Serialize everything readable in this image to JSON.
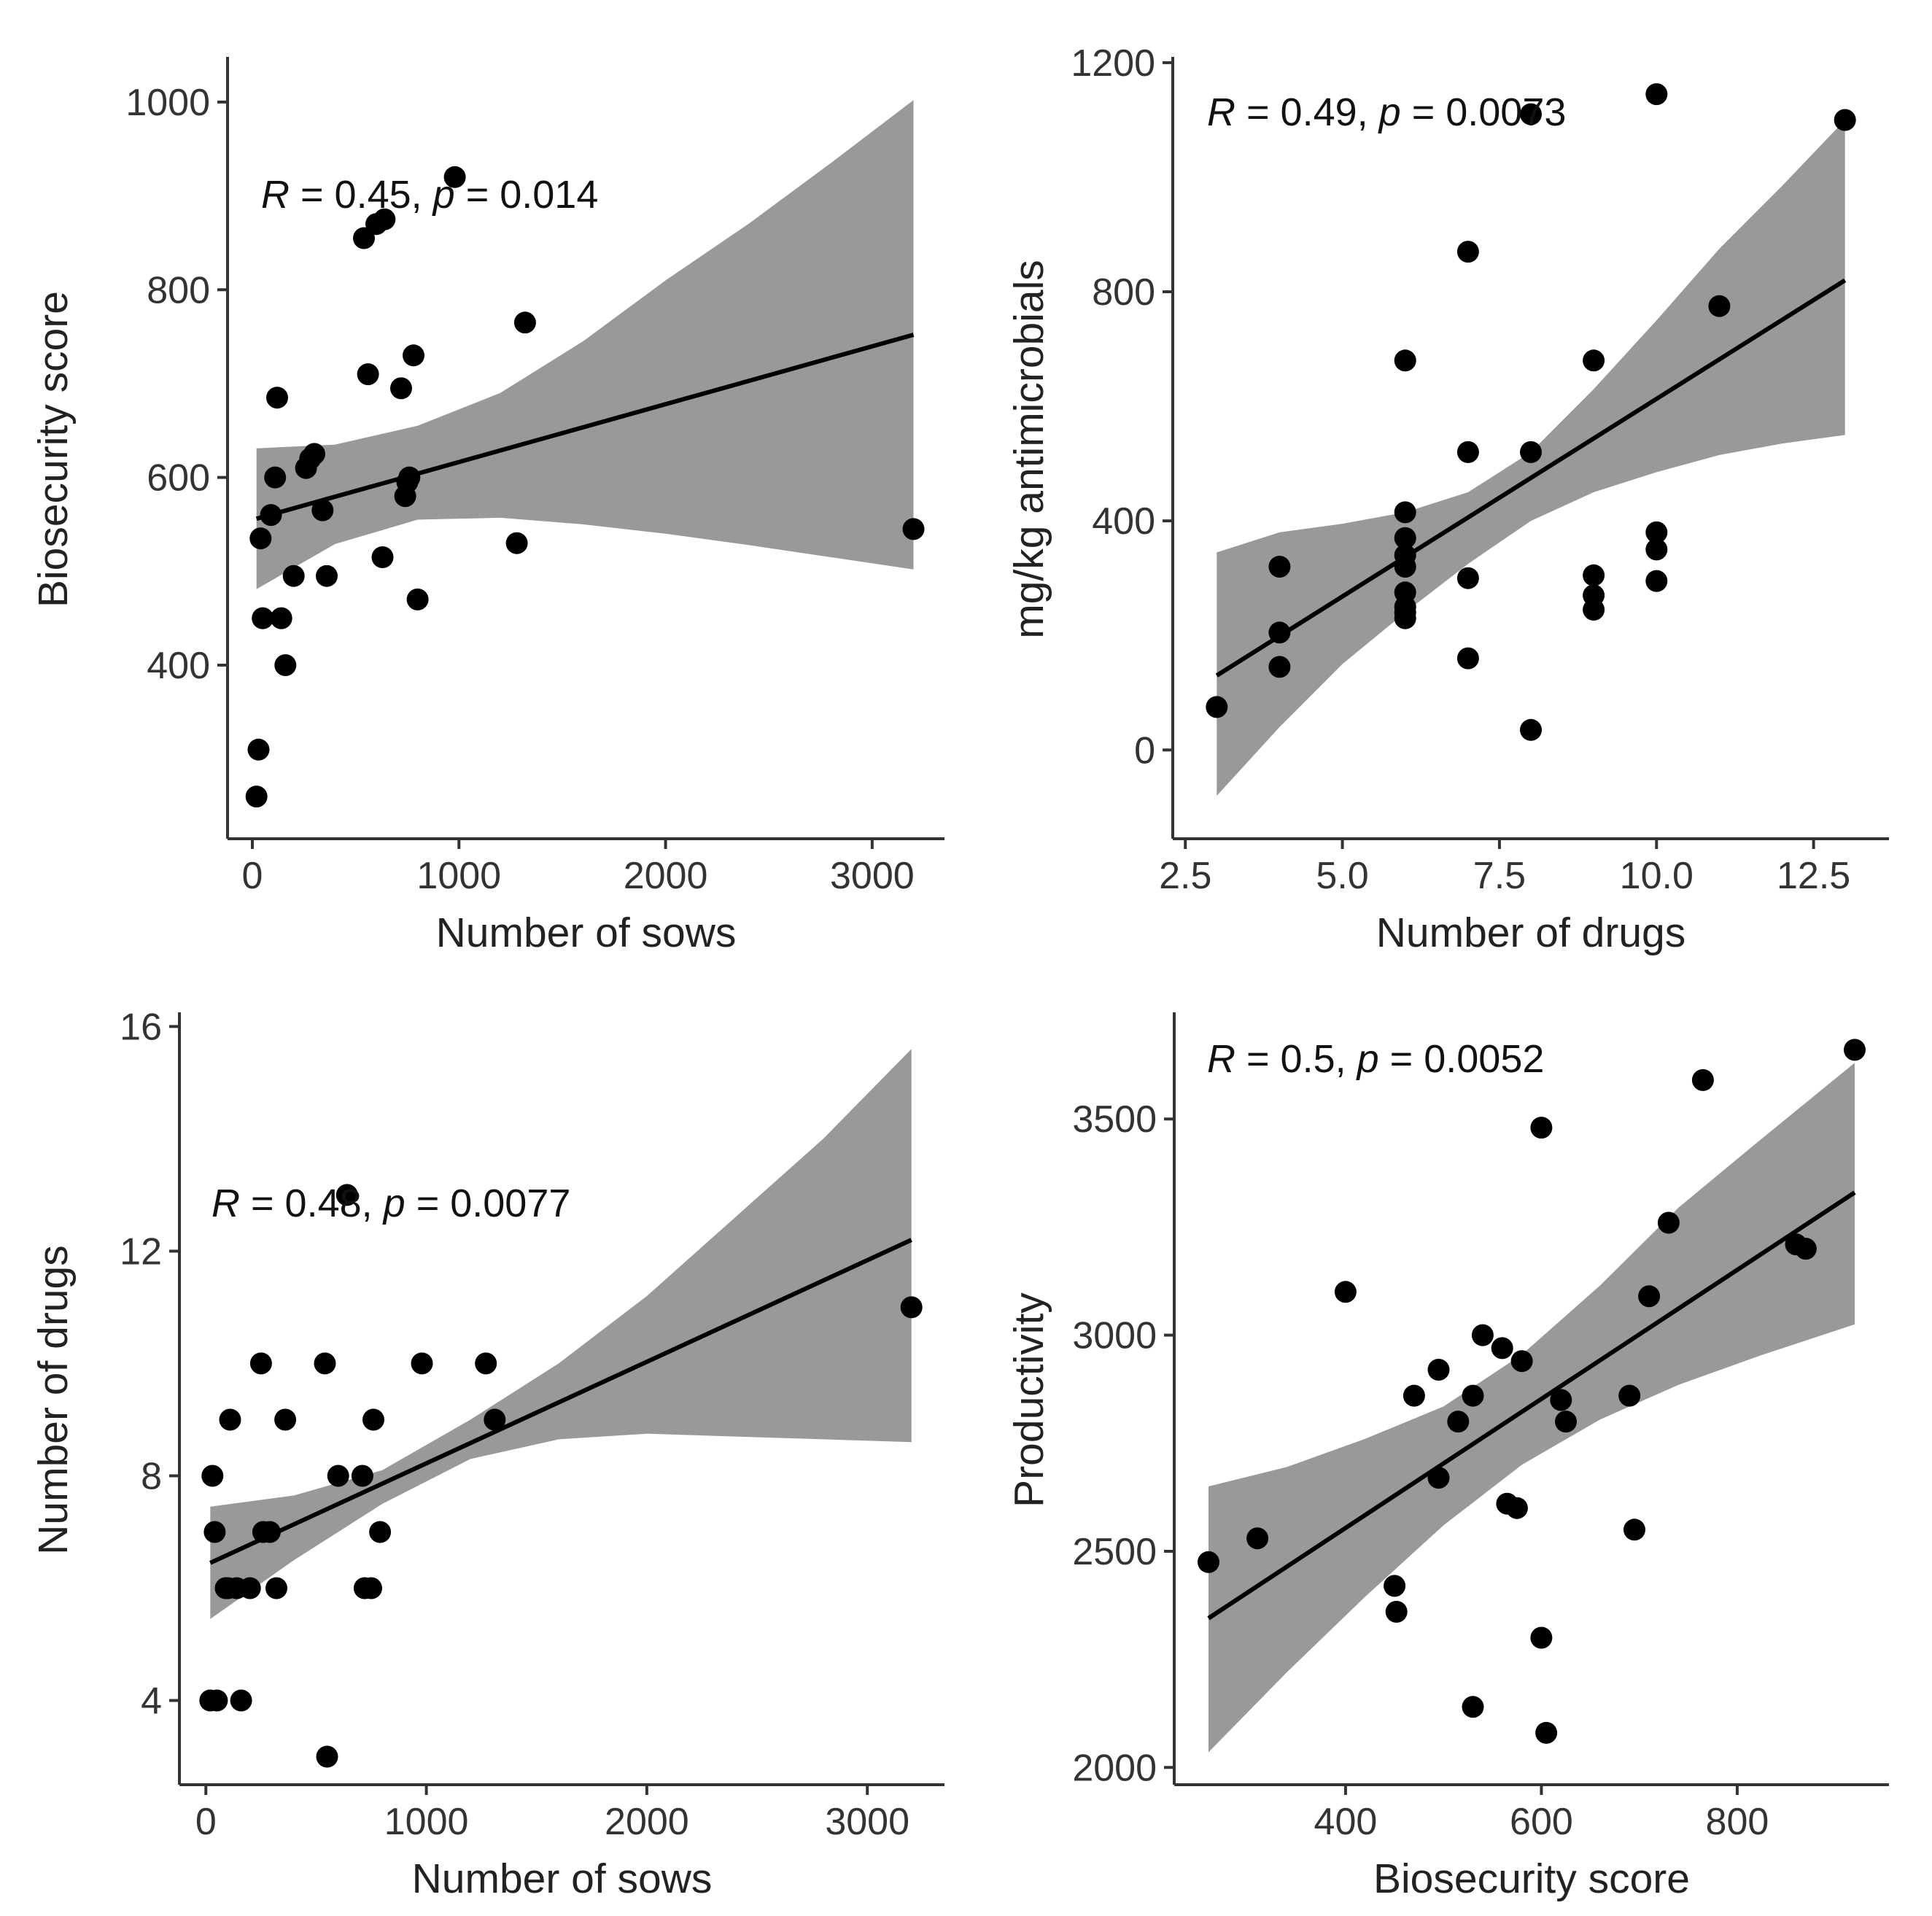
{
  "chart_data": [
    {
      "id": "sows_vs_biosecurity",
      "type": "scatter",
      "xlabel": "Number of sows",
      "ylabel": "Biosecurity score",
      "annotation": {
        "r_label": "R",
        "text": " = 0.45, ",
        "p_label": "p",
        "p_text": " = 0.014"
      },
      "xlim": [
        -120,
        3350
      ],
      "ylim": [
        215,
        1045
      ],
      "xticks": [
        0,
        1000,
        2000,
        3000
      ],
      "xtick_labels": [
        "0",
        "1000",
        "2000",
        "3000"
      ],
      "yticks": [
        400,
        600,
        800,
        1000
      ],
      "ytick_labels": [
        "400",
        "600",
        "800",
        "1000"
      ],
      "grid": false,
      "x": [
        20,
        30,
        40,
        50,
        90,
        120,
        110,
        140,
        160,
        200,
        260,
        280,
        300,
        340,
        360,
        540,
        560,
        600,
        630,
        640,
        720,
        740,
        750,
        760,
        780,
        800,
        980,
        1280,
        1320,
        3200
      ],
      "y": [
        260,
        310,
        535,
        450,
        560,
        685,
        600,
        450,
        400,
        495,
        610,
        620,
        625,
        565,
        495,
        855,
        710,
        870,
        515,
        875,
        695,
        580,
        595,
        600,
        730,
        470,
        920,
        530,
        765,
        545
      ],
      "fit": {
        "x_start": 20,
        "x_end": 3200,
        "y_start": 556,
        "y_end": 752
      },
      "band": {
        "x": [
          20,
          400,
          800,
          1200,
          1600,
          2000,
          2400,
          2800,
          3200
        ],
        "lower": [
          481,
          529,
          555,
          557,
          550,
          540,
          528,
          515,
          502
        ],
        "upper": [
          631,
          635,
          655,
          690,
          745,
          810,
          870,
          935,
          1002
        ]
      }
    },
    {
      "id": "drugs_vs_antimicrobials",
      "type": "scatter",
      "xlabel": "Number of drugs",
      "ylabel": "mg/kg antimicrobials",
      "annotation": {
        "r_label": "R",
        "text": " = 0.49, ",
        "p_label": "p",
        "p_text": " = 0.0073"
      },
      "xlim": [
        2.3,
        13.7
      ],
      "ylim": [
        -155,
        1205
      ],
      "xticks": [
        2.5,
        5.0,
        7.5,
        10.0,
        12.5
      ],
      "xtick_labels": [
        "2.5",
        "5.0",
        "7.5",
        "10.0",
        "12.5"
      ],
      "yticks": [
        0,
        400,
        800,
        1200
      ],
      "ytick_labels": [
        "0",
        "400",
        "800",
        "1200"
      ],
      "grid": false,
      "x": [
        3,
        4,
        4,
        4,
        6,
        6,
        6,
        6,
        6,
        6,
        6,
        6,
        6,
        7,
        7,
        7,
        7,
        8,
        8,
        8,
        9,
        9,
        9,
        9,
        10,
        10,
        10,
        10,
        11,
        13
      ],
      "y": [
        75,
        320,
        205,
        145,
        680,
        415,
        370,
        340,
        320,
        275,
        250,
        240,
        230,
        870,
        520,
        300,
        160,
        1110,
        520,
        35,
        680,
        305,
        270,
        245,
        1145,
        380,
        350,
        295,
        775,
        1100
      ],
      "fit": {
        "x_start": 3,
        "x_end": 13,
        "y_start": 130,
        "y_end": 820
      },
      "band": {
        "x": [
          3,
          4,
          5,
          6,
          7,
          8,
          9,
          10,
          11,
          12,
          13
        ],
        "lower": [
          -80,
          40,
          150,
          240,
          325,
          400,
          450,
          485,
          515,
          535,
          550
        ],
        "upper": [
          345,
          380,
          395,
          415,
          450,
          520,
          630,
          750,
          875,
          985,
          1100
        ]
      }
    },
    {
      "id": "sows_vs_drugs",
      "type": "scatter",
      "xlabel": "Number of sows",
      "ylabel": "Number of drugs",
      "annotation": {
        "r_label": "R",
        "text": " = 0.48, ",
        "p_label": "p",
        "p_text": " = 0.0077"
      },
      "xlim": [
        -120,
        3350
      ],
      "ylim": [
        2.5,
        16.2
      ],
      "xticks": [
        0,
        1000,
        2000,
        3000
      ],
      "xtick_labels": [
        "0",
        "1000",
        "2000",
        "3000"
      ],
      "yticks": [
        4,
        8,
        12,
        16
      ],
      "ytick_labels": [
        "4",
        "8",
        "12",
        "16"
      ],
      "grid": false,
      "x": [
        20,
        30,
        40,
        50,
        90,
        100,
        110,
        140,
        160,
        200,
        250,
        260,
        290,
        320,
        360,
        540,
        550,
        600,
        640,
        710,
        720,
        750,
        760,
        790,
        980,
        1270,
        1310,
        3200
      ],
      "y": [
        4,
        8,
        7,
        4,
        6,
        6,
        9,
        6,
        4,
        6,
        10,
        7,
        7,
        6,
        9,
        10,
        3,
        8,
        13,
        8,
        6,
        6,
        9,
        7,
        10,
        10,
        9,
        11
      ],
      "fit": {
        "x_start": 20,
        "x_end": 3200,
        "y_start": 6.45,
        "y_end": 12.2
      },
      "band": {
        "x": [
          20,
          400,
          800,
          1200,
          1600,
          2000,
          2400,
          2800,
          3200
        ],
        "lower": [
          5.45,
          6.5,
          7.5,
          8.3,
          8.65,
          8.75,
          8.7,
          8.65,
          8.6
        ],
        "upper": [
          7.45,
          7.65,
          8.1,
          9.0,
          10.0,
          11.2,
          12.6,
          14.0,
          15.6
        ]
      }
    },
    {
      "id": "biosecurity_vs_productivity",
      "type": "scatter",
      "xlabel": "Biosecurity score",
      "ylabel": "Productivity",
      "annotation": {
        "r_label": "R",
        "text": " = 0.5, ",
        "p_label": "p",
        "p_text": " = 0.0052"
      },
      "xlim": [
        225,
        955
      ],
      "ylim": [
        1960,
        3740
      ],
      "xticks": [
        400,
        600,
        800
      ],
      "xtick_labels": [
        "400",
        "600",
        "800"
      ],
      "yticks": [
        2000,
        2500,
        3000,
        3500
      ],
      "ytick_labels": [
        "2000",
        "2500",
        "3000",
        "3500"
      ],
      "grid": false,
      "x": [
        260,
        310,
        400,
        450,
        452,
        470,
        495,
        495,
        515,
        530,
        530,
        540,
        560,
        565,
        575,
        580,
        600,
        600,
        605,
        620,
        625,
        690,
        695,
        710,
        730,
        765,
        860,
        870,
        920
      ],
      "y": [
        2475,
        2530,
        3100,
        2420,
        2360,
        2860,
        2920,
        2670,
        2800,
        2860,
        2140,
        3000,
        2970,
        2610,
        2600,
        2940,
        3480,
        2300,
        2080,
        2850,
        2800,
        2860,
        2550,
        3090,
        3260,
        3590,
        3210,
        3200,
        3660
      ],
      "fit": {
        "x_start": 260,
        "x_end": 920,
        "y_start": 2345,
        "y_end": 3330
      },
      "band": {
        "x": [
          260,
          340,
          420,
          500,
          580,
          660,
          740,
          820,
          920
        ],
        "lower": [
          2035,
          2220,
          2395,
          2560,
          2700,
          2805,
          2885,
          2950,
          3025
        ],
        "upper": [
          2650,
          2695,
          2760,
          2835,
          2955,
          3115,
          3295,
          3445,
          3630
        ]
      }
    }
  ]
}
